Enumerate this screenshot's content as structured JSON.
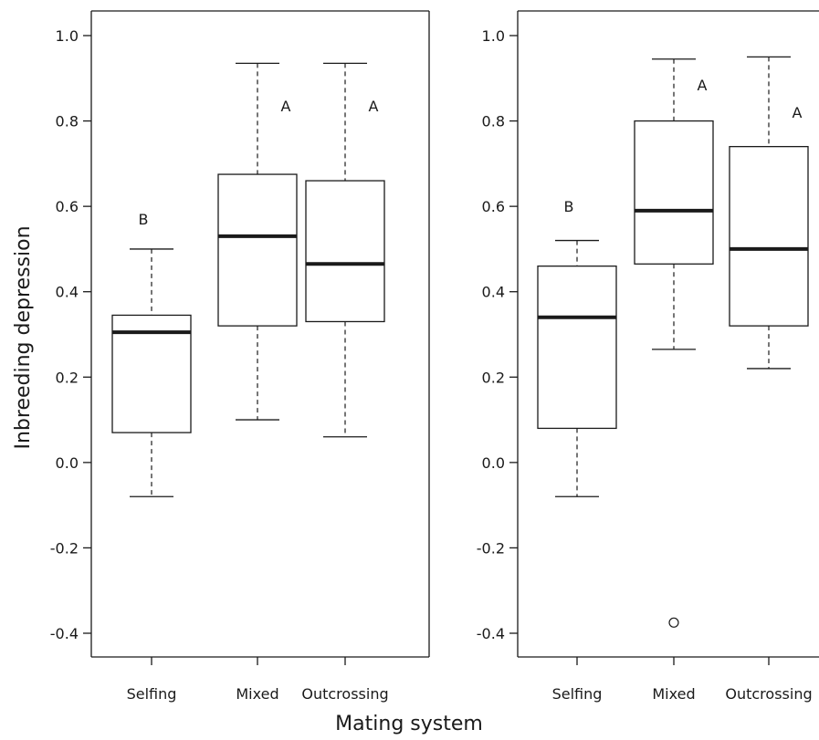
{
  "xlabel": "Mating system",
  "ylabel": "Inbreeding depression",
  "chart_data": [
    {
      "type": "boxplot",
      "categories": [
        "Selfing",
        "Mixed",
        "Outcrossing"
      ],
      "ylim": [
        -0.45,
        1.05
      ],
      "yticks": [
        "-0.4",
        "-0.2",
        "0.0",
        "0.2",
        "0.4",
        "0.6",
        "0.8",
        "1.0"
      ],
      "grid": false,
      "boxes": [
        {
          "category": "Selfing",
          "min": -0.08,
          "q1": 0.07,
          "median": 0.305,
          "q3": 0.345,
          "max": 0.5,
          "letter": "B",
          "letter_y": 0.57,
          "outliers": []
        },
        {
          "category": "Mixed",
          "min": 0.1,
          "q1": 0.32,
          "median": 0.53,
          "q3": 0.675,
          "max": 0.935,
          "letter": "A",
          "letter_y": 0.835,
          "outliers": []
        },
        {
          "category": "Outcrossing",
          "min": 0.06,
          "q1": 0.33,
          "median": 0.465,
          "q3": 0.66,
          "max": 0.935,
          "letter": "A",
          "letter_y": 0.835,
          "outliers": []
        }
      ]
    },
    {
      "type": "boxplot",
      "categories": [
        "Selfing",
        "Mixed",
        "Outcrossing"
      ],
      "ylim": [
        -0.45,
        1.05
      ],
      "yticks": [
        "-0.4",
        "-0.2",
        "0.0",
        "0.2",
        "0.4",
        "0.6",
        "0.8",
        "1.0"
      ],
      "grid": false,
      "boxes": [
        {
          "category": "Selfing",
          "min": -0.08,
          "q1": 0.08,
          "median": 0.34,
          "q3": 0.46,
          "max": 0.52,
          "letter": "B",
          "letter_y": 0.6,
          "outliers": []
        },
        {
          "category": "Mixed",
          "min": 0.265,
          "q1": 0.465,
          "median": 0.59,
          "q3": 0.8,
          "max": 0.945,
          "letter": "A",
          "letter_y": 0.885,
          "outliers": [
            -0.375
          ]
        },
        {
          "category": "Outcrossing",
          "min": 0.22,
          "q1": 0.32,
          "median": 0.5,
          "q3": 0.74,
          "max": 0.95,
          "letter": "A",
          "letter_y": 0.82,
          "outliers": []
        }
      ]
    }
  ]
}
